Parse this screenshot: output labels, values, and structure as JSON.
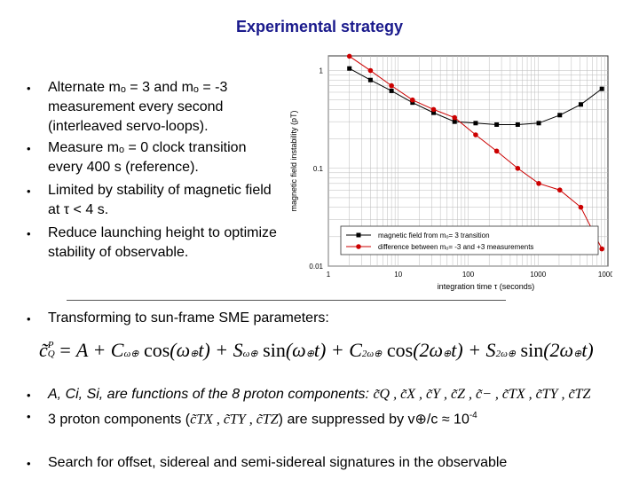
{
  "title": "Experimental strategy",
  "bullets_top": [
    {
      "text": "Alternate mₒ = 3 and mₒ = -3 measurement every second (interleaved servo-loops)."
    },
    {
      "text": "Measure mₒ = 0 clock transition every 400 s (reference)."
    },
    {
      "text": "Limited by stability of magnetic field at τ < 4 s."
    },
    {
      "text": "Reduce launching height to optimize stability of observable."
    }
  ],
  "bullet_sme": "Transforming to sun-frame SME parameters:",
  "equation_text": "c̃_Q^P = A + Cω⊕ cos(ω⊕ t) + Sω⊕ sin(ω⊕ t) + C2ω⊕ cos(2ω⊕ t) + S2ω⊕ sin(2ω⊕ t)",
  "bullet_functions": "A, Ci, Si, are functions of the 8 proton components:",
  "bullet_functions_math": "c̃Q , c̃X , c̃Y , c̃Z , c̃− , c̃TX , c̃TY , c̃TZ",
  "bullet_suppressed_a": "3 proton components (",
  "bullet_suppressed_math": "c̃TX , c̃TY , c̃TZ",
  "bullet_suppressed_b": ") are suppressed by v⊕/c ≈ 10",
  "bullet_suppressed_exp": "-4",
  "bullet_search": "Search for offset, sidereal and semi-sidereal signatures in the observable",
  "chart_data": {
    "type": "line",
    "xlabel": "integration time τ (seconds)",
    "ylabel": "magnetic field instability (pT)",
    "xscale": "log",
    "yscale": "log",
    "xlim": [
      1,
      10000
    ],
    "ylim": [
      0.01,
      1
    ],
    "x_ticks": [
      "1",
      "10",
      "100",
      "1000",
      "10000"
    ],
    "y_ticks": [
      "0.01",
      "0.1",
      "1"
    ],
    "grid": true,
    "legend_position": "bottom",
    "series": [
      {
        "name": "magnetic field from mₒ= 3 transition",
        "color": "#000000",
        "marker": "square",
        "x": [
          2,
          4,
          8,
          16,
          32,
          64,
          128,
          256,
          512,
          1024,
          2048,
          4096,
          8192
        ],
        "y": [
          1.05,
          0.8,
          0.62,
          0.47,
          0.37,
          0.3,
          0.29,
          0.28,
          0.28,
          0.29,
          0.35,
          0.45,
          0.65
        ]
      },
      {
        "name": "difference between mₒ= -3 and +3 measurements",
        "color": "#cc0000",
        "marker": "circle",
        "x": [
          2,
          4,
          8,
          16,
          32,
          64,
          128,
          256,
          512,
          1024,
          2048,
          4096,
          8192
        ],
        "y": [
          1.4,
          1.0,
          0.7,
          0.5,
          0.4,
          0.33,
          0.22,
          0.15,
          0.1,
          0.07,
          0.06,
          0.04,
          0.015
        ]
      }
    ]
  }
}
